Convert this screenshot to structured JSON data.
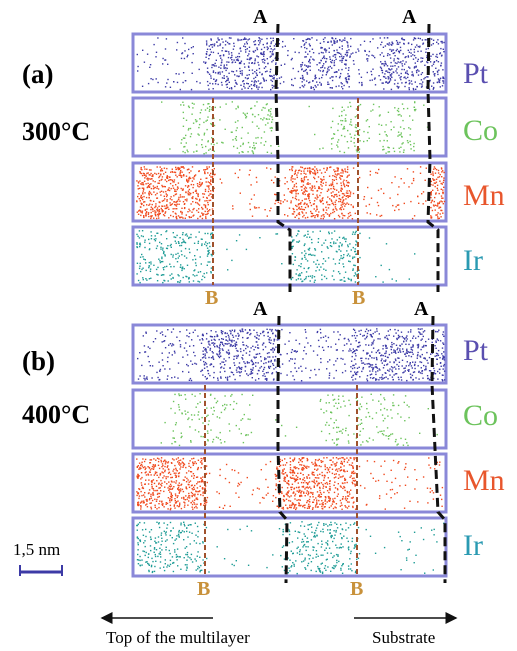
{
  "panels": [
    {
      "id": "a",
      "letter": "(a)",
      "temperature": "300°C",
      "label_a": "A",
      "label_b": "B",
      "strips": [
        {
          "element": "Pt",
          "color": "#3c3aa6",
          "label_color": "#5a4fb0"
        },
        {
          "element": "Co",
          "color": "#6cc35c",
          "label_color": "#6cc35c"
        },
        {
          "element": "Mn",
          "color": "#f04a1e",
          "label_color": "#e8562c"
        },
        {
          "element": "Ir",
          "color": "#1e9c96",
          "label_color": "#2a9ab2"
        }
      ]
    },
    {
      "id": "b",
      "letter": "(b)",
      "temperature": "400°C",
      "label_a": "A",
      "label_b": "B",
      "strips": [
        {
          "element": "Pt",
          "color": "#3c3aa6",
          "label_color": "#5a4fb0"
        },
        {
          "element": "Co",
          "color": "#6cc35c",
          "label_color": "#6cc35c"
        },
        {
          "element": "Mn",
          "color": "#f04a1e",
          "label_color": "#e8562c"
        },
        {
          "element": "Ir",
          "color": "#1e9c96",
          "label_color": "#2a9ab2"
        }
      ]
    }
  ],
  "scale_bar": {
    "label": "1,5 nm",
    "color": "#3c3aa6"
  },
  "bottom": {
    "left_label": "Top of the multilayer",
    "right_label": "Substrate"
  },
  "colors": {
    "boundary_a": "#111111",
    "boundary_b": "#a0522d",
    "label_b": "#c8913a",
    "strip_border": "#8a88d8"
  }
}
